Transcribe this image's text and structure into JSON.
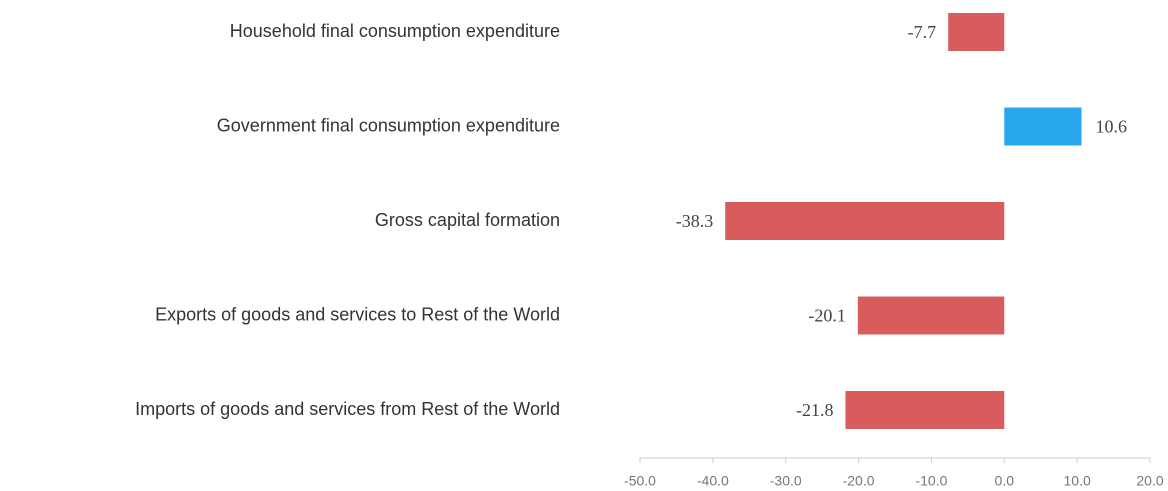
{
  "chart_data": {
    "type": "barh",
    "categories": [
      "Household final consumption expenditure",
      "Government final consumption expenditure",
      "Gross capital formation",
      "Exports of goods and services to Rest of the World",
      "Imports of goods and services from Rest of the World"
    ],
    "values": [
      -7.7,
      10.6,
      -38.3,
      -20.1,
      -21.8
    ],
    "colors": [
      "#d85c5c",
      "#27a8ec",
      "#d85c5c",
      "#d85c5c",
      "#d85c5c"
    ],
    "xlim": [
      -50,
      20
    ],
    "xticks": [
      {
        "value": -50,
        "label": "-50.0"
      },
      {
        "value": -40,
        "label": "-40.0"
      },
      {
        "value": -30,
        "label": "-30.0"
      },
      {
        "value": -20,
        "label": "-20.0"
      },
      {
        "value": -10,
        "label": "-10.0"
      },
      {
        "value": 0,
        "label": "0.0"
      },
      {
        "value": 10,
        "label": "10.0"
      },
      {
        "value": 20,
        "label": "20.0"
      }
    ]
  }
}
